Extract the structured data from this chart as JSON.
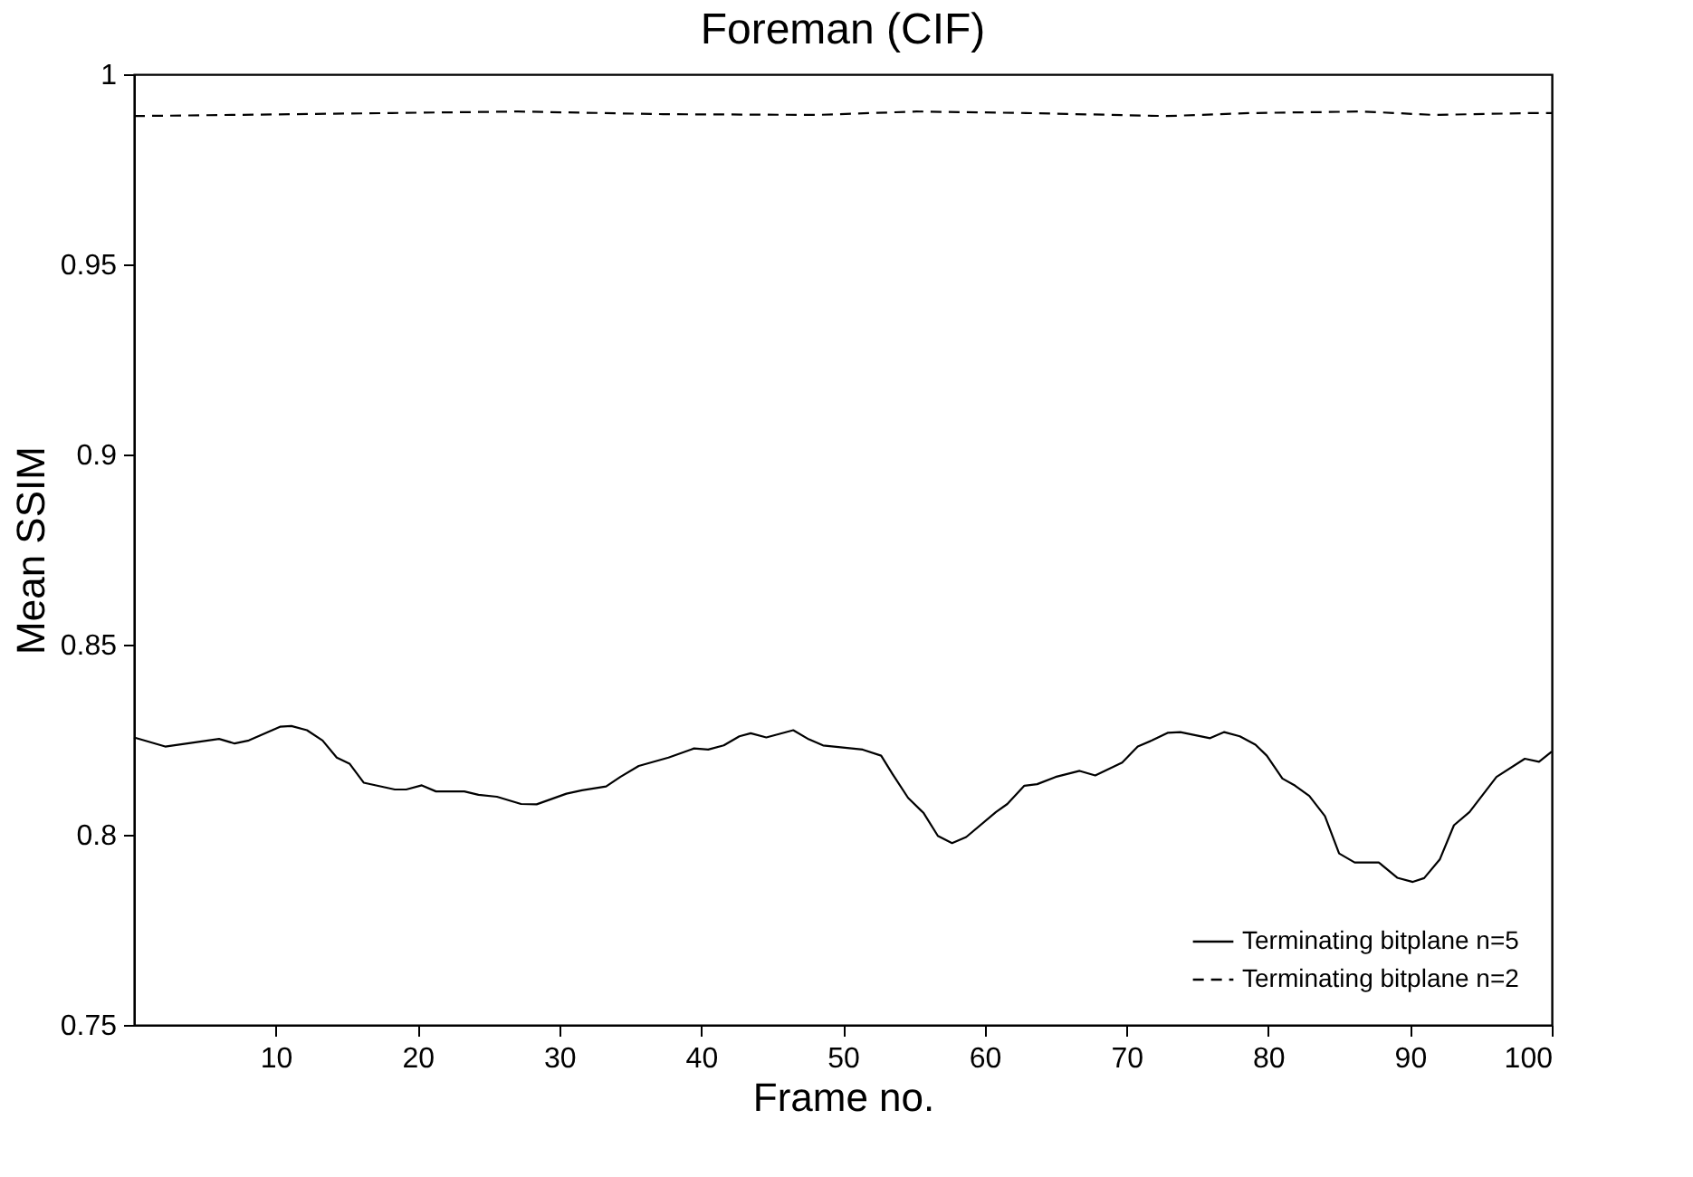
{
  "chart_data": {
    "type": "line",
    "title": "Foreman (CIF)",
    "xlabel": "Frame no.",
    "ylabel": "Mean SSIM",
    "xlim": [
      0,
      100
    ],
    "xticks": [
      10,
      20,
      30,
      40,
      50,
      60,
      70,
      80,
      90,
      100
    ],
    "ylim": [
      0.75,
      1
    ],
    "yticks": [
      0.75,
      0.8,
      0.85,
      0.9,
      0.95,
      1
    ],
    "grid": false,
    "legend": "bottom right",
    "marker": "none",
    "series": [
      {
        "name": "Terminating bitplane n=5",
        "color": "#000000",
        "line_style": "solid",
        "x": [
          0,
          2.2,
          6.0,
          7.1,
          8.1,
          10.3,
          11.1,
          12.2,
          13.3,
          14.3,
          15.2,
          16.2,
          18.4,
          19.2,
          20.3,
          21.3,
          23.3,
          24.3,
          25.6,
          27.3,
          28.4,
          30.5,
          31.6,
          33.3,
          34.3,
          35.6,
          37.7,
          39.5,
          40.5,
          41.6,
          42.7,
          43.5,
          44.6,
          46.5,
          47.6,
          48.6,
          51.4,
          52.7,
          53.5,
          54.6,
          55.7,
          56.7,
          57.7,
          58.7,
          60.8,
          61.6,
          62.8,
          63.7,
          65.0,
          66.7,
          67.8,
          69.7,
          70.8,
          71.8,
          72.9,
          73.8,
          75.9,
          76.9,
          78.0,
          79.1,
          79.9,
          81.0,
          81.9,
          82.9,
          84.0,
          85.0,
          86.1,
          87.8,
          89.1,
          90.2,
          91.0,
          92.1,
          93.1,
          94.2,
          96.1,
          98.1,
          99.1,
          100
        ],
        "values": [
          0.8256,
          0.8232,
          0.8252,
          0.824,
          0.8248,
          0.8284,
          0.8286,
          0.8275,
          0.8248,
          0.8203,
          0.8187,
          0.8137,
          0.8119,
          0.8119,
          0.813,
          0.8114,
          0.8114,
          0.8105,
          0.81,
          0.8081,
          0.808,
          0.8108,
          0.8117,
          0.8127,
          0.8152,
          0.8181,
          0.8203,
          0.8227,
          0.8224,
          0.8235,
          0.8259,
          0.8267,
          0.8256,
          0.8275,
          0.8251,
          0.8235,
          0.8224,
          0.8208,
          0.816,
          0.8097,
          0.8057,
          0.7997,
          0.7978,
          0.7994,
          0.806,
          0.8081,
          0.8129,
          0.8133,
          0.8152,
          0.8168,
          0.8156,
          0.819,
          0.8232,
          0.8248,
          0.8268,
          0.827,
          0.8254,
          0.827,
          0.8259,
          0.8237,
          0.8208,
          0.8148,
          0.8129,
          0.8102,
          0.8049,
          0.7951,
          0.7927,
          0.7927,
          0.7887,
          0.7876,
          0.7886,
          0.7935,
          0.8025,
          0.806,
          0.8152,
          0.82,
          0.8192,
          0.8219
        ]
      },
      {
        "name": "Terminating bitplane n=2",
        "color": "#000000",
        "line_style": "dashed",
        "x": [
          0,
          18.2,
          27.1,
          37.3,
          48.2,
          55.2,
          62.9,
          72.8,
          78.9,
          86.6,
          91.7,
          98.7,
          100
        ],
        "values": [
          0.989,
          0.9898,
          0.9902,
          0.9895,
          0.9893,
          0.9902,
          0.9898,
          0.989,
          0.9898,
          0.9902,
          0.9893,
          0.9898,
          0.9898
        ]
      }
    ]
  }
}
